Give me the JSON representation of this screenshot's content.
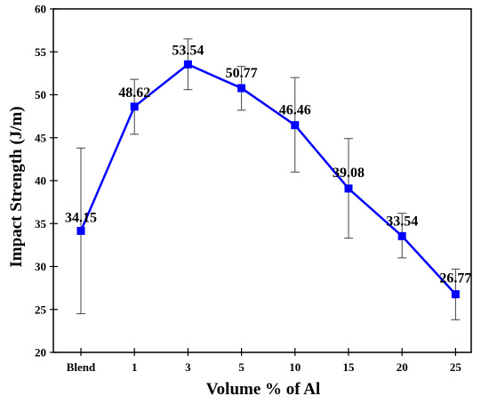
{
  "chart_data": {
    "type": "line",
    "xlabel": "Volume % of Al",
    "ylabel": "Impact Strength (J/m)",
    "categories": [
      "Blend",
      "1",
      "3",
      "5",
      "10",
      "15",
      "20",
      "25"
    ],
    "series": [
      {
        "values": [
          34.15,
          48.62,
          53.54,
          50.77,
          46.46,
          39.08,
          33.54,
          26.77
        ],
        "error_low": [
          24.5,
          45.4,
          50.6,
          48.2,
          41.0,
          33.3,
          31.0,
          23.8
        ],
        "error_high": [
          43.8,
          51.8,
          56.5,
          53.3,
          52.0,
          44.9,
          36.2,
          29.7
        ],
        "data_labels": [
          "34.15",
          "48.62",
          "53.54",
          "50.77",
          "46.46",
          "39.08",
          "33.54",
          "26.77"
        ]
      }
    ],
    "ylim": [
      20,
      60
    ],
    "yticks": [
      "20",
      "25",
      "30",
      "35",
      "40",
      "45",
      "50",
      "55",
      "60"
    ],
    "line_color": "#0000ff",
    "marker": "square",
    "error_bar_color": "#444444",
    "grid": false,
    "legend": "none"
  }
}
